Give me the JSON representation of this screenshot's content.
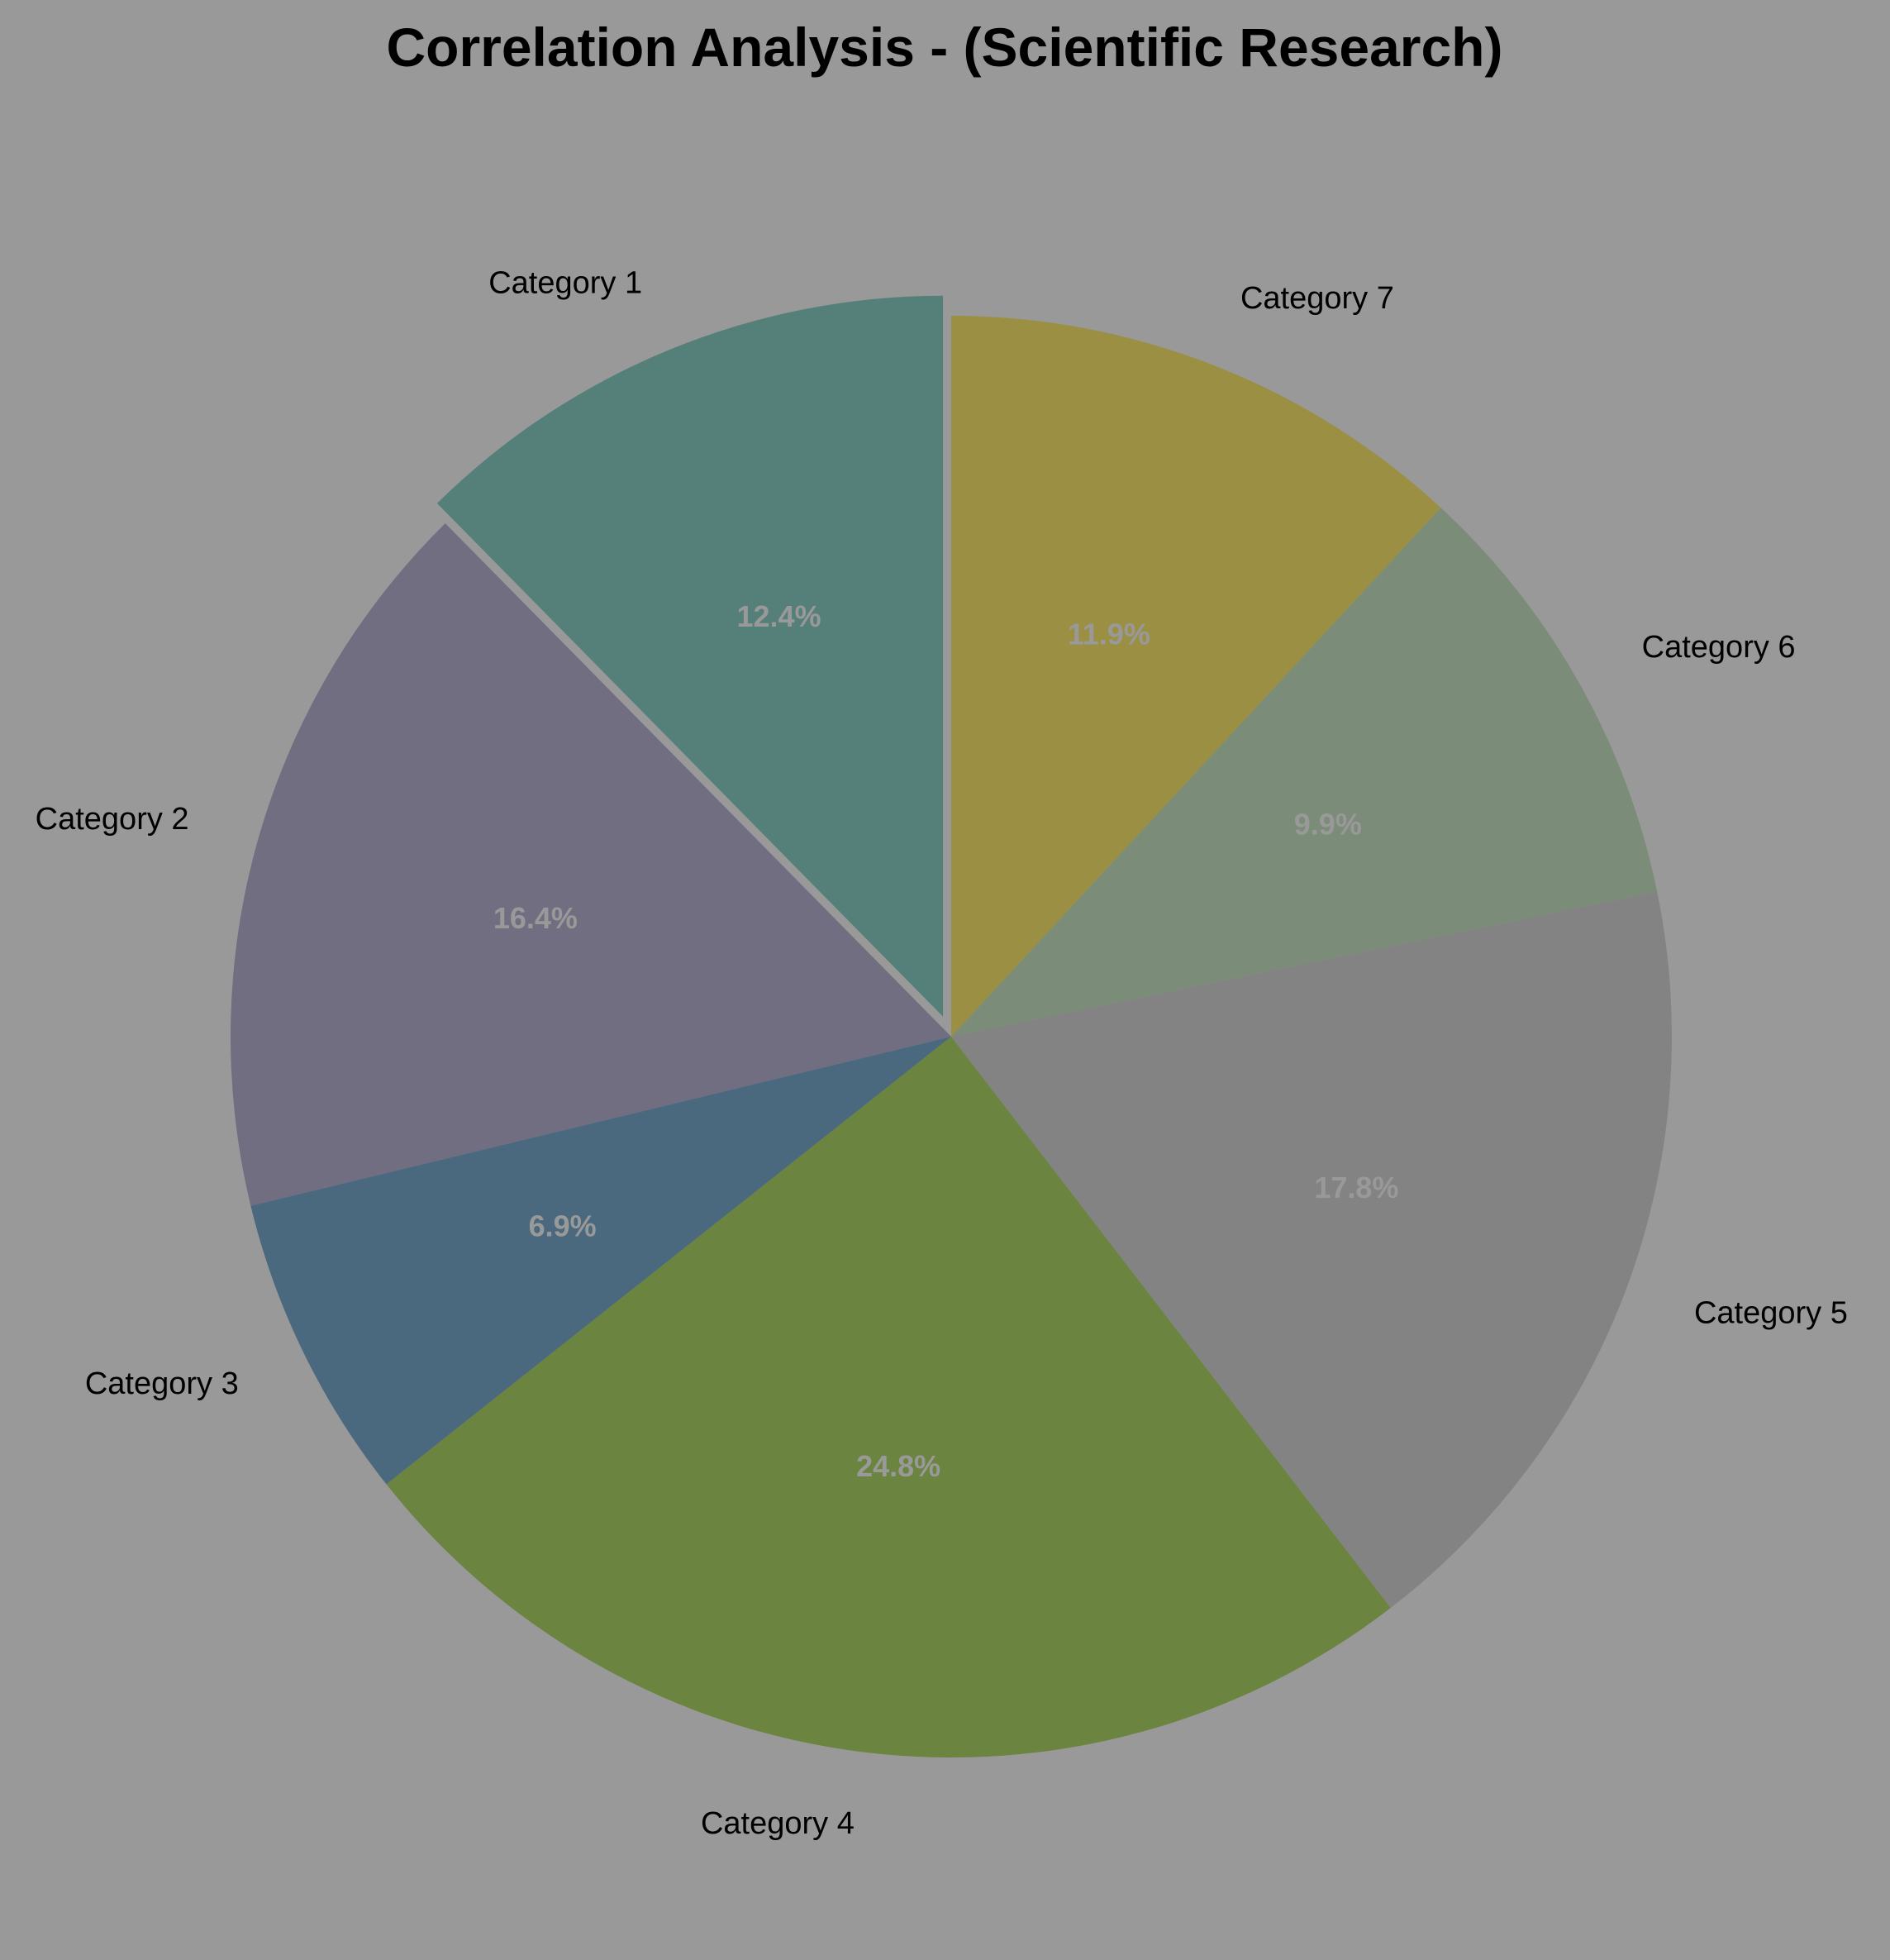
{
  "chart_data": {
    "type": "pie",
    "title": "Correlation Analysis - (Scientific Research)",
    "start_angle_deg": 90,
    "direction": "counterclockwise",
    "exploded": [
      "Category 1"
    ],
    "categories": [
      "Category 1",
      "Category 2",
      "Category 3",
      "Category 4",
      "Category 5",
      "Category 6",
      "Category 7"
    ],
    "values": [
      12.4,
      16.4,
      6.9,
      24.8,
      17.8,
      9.9,
      11.9
    ],
    "pct_labels": [
      "12.4%",
      "16.4%",
      "6.9%",
      "24.8%",
      "17.8%",
      "9.9%",
      "11.9%"
    ],
    "colors": [
      "#557f79",
      "#716e82",
      "#4a697e",
      "#6b843f",
      "#838383",
      "#7b8d78",
      "#9a8f43"
    ],
    "background": "#999999"
  }
}
